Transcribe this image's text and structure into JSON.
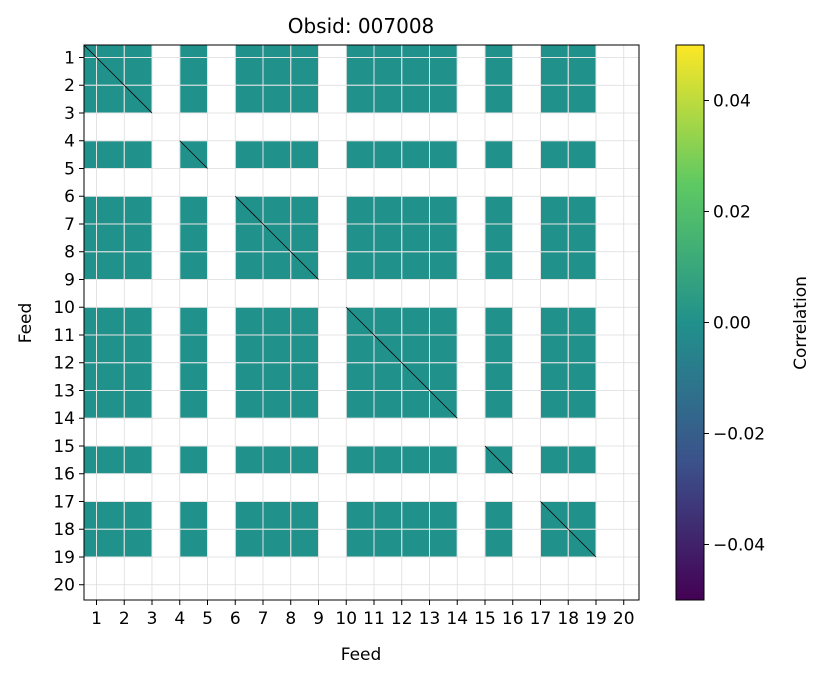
{
  "chart_data": {
    "type": "heatmap",
    "title": "Obsid: 007008",
    "xlabel": "Feed",
    "ylabel": "Feed",
    "feeds": [
      1,
      2,
      3,
      4,
      5,
      6,
      7,
      8,
      9,
      10,
      11,
      12,
      13,
      14,
      15,
      16,
      17,
      18,
      19,
      20
    ],
    "tick_labels": [
      "1",
      "2",
      "3",
      "4",
      "5",
      "6",
      "7",
      "8",
      "9",
      "10",
      "11",
      "12",
      "13",
      "14",
      "15",
      "16",
      "17",
      "18",
      "19",
      "20"
    ],
    "active_feeds": [
      1,
      2,
      3,
      5,
      7,
      8,
      9,
      11,
      12,
      13,
      14,
      16,
      18,
      19
    ],
    "cell_value": 0.0,
    "grid": true,
    "colorbar": {
      "label": "Correlation",
      "min": -0.05,
      "max": 0.05,
      "ticks": [
        -0.04,
        -0.02,
        0.0,
        0.02,
        0.04
      ],
      "tick_labels": [
        "−0.04",
        "−0.02",
        "0.00",
        "0.02",
        "0.04"
      ],
      "colormap": "viridis"
    }
  },
  "colors": {
    "cell": "#21918c",
    "gap": "#ffffff",
    "grid": "#dcdcdc",
    "diagonal": "#000000",
    "viridis": [
      "#440154",
      "#3b528b",
      "#21918c",
      "#5ec962",
      "#fde725"
    ]
  }
}
